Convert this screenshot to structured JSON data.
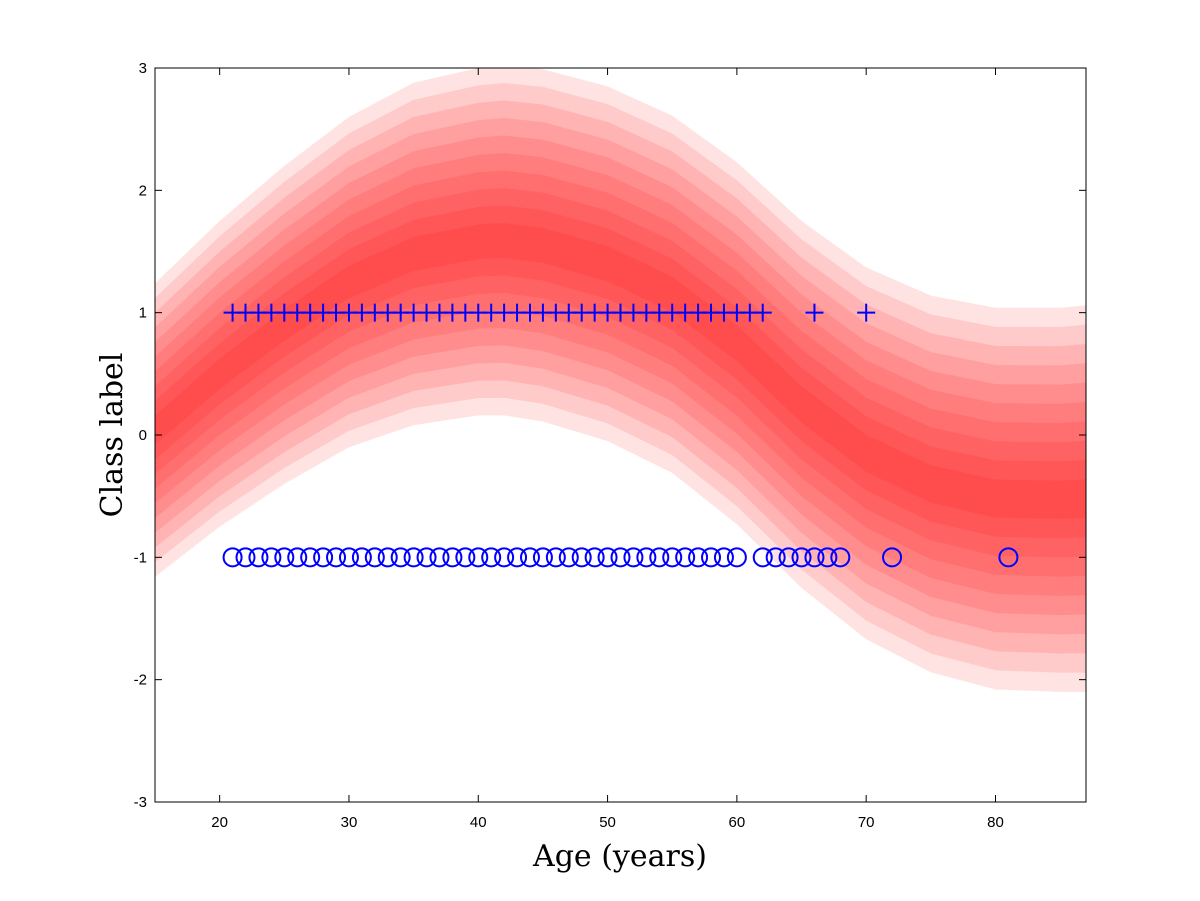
{
  "chart_data": {
    "type": "scatter",
    "title": "",
    "xlabel": "Age (years)",
    "ylabel": "Class label",
    "xlim": [
      15,
      87
    ],
    "ylim": [
      -3,
      3
    ],
    "xticks": [
      20,
      30,
      40,
      50,
      60,
      70,
      80
    ],
    "yticks": [
      -3,
      -2,
      -1,
      0,
      1,
      2,
      3
    ],
    "grid": false,
    "band": {
      "description": "shaded predictive distribution, darker red near the mean",
      "color": "#ff0000",
      "x": [
        15,
        20,
        25,
        30,
        35,
        40,
        42,
        45,
        50,
        55,
        60,
        65,
        70,
        75,
        80,
        85,
        87
      ],
      "mean": [
        0.04,
        0.5,
        0.9,
        1.25,
        1.48,
        1.58,
        1.59,
        1.55,
        1.4,
        1.15,
        0.75,
        0.25,
        -0.15,
        -0.4,
        -0.52,
        -0.53,
        -0.52
      ],
      "halfwidth_outer": [
        1.2,
        1.25,
        1.3,
        1.35,
        1.4,
        1.42,
        1.43,
        1.44,
        1.45,
        1.46,
        1.48,
        1.5,
        1.52,
        1.54,
        1.56,
        1.57,
        1.58
      ],
      "levels": 10
    },
    "series": [
      {
        "marker": "plus",
        "color": "#0000ff",
        "x": [
          21,
          22,
          23,
          24,
          25,
          26,
          27,
          28,
          29,
          30,
          31,
          32,
          33,
          34,
          35,
          36,
          37,
          38,
          39,
          40,
          41,
          42,
          43,
          44,
          45,
          46,
          47,
          48,
          49,
          50,
          51,
          52,
          53,
          54,
          55,
          56,
          57,
          58,
          59,
          60,
          61,
          62,
          66,
          70
        ],
        "y": 1
      },
      {
        "marker": "circle",
        "color": "#0000ff",
        "x": [
          21,
          22,
          23,
          24,
          25,
          26,
          27,
          28,
          29,
          30,
          31,
          32,
          33,
          34,
          35,
          36,
          37,
          38,
          39,
          40,
          41,
          42,
          43,
          44,
          45,
          46,
          47,
          48,
          49,
          50,
          51,
          52,
          53,
          54,
          55,
          56,
          57,
          58,
          59,
          60,
          62,
          63,
          64,
          65,
          66,
          67,
          68,
          72,
          81
        ],
        "y": -1
      }
    ]
  }
}
